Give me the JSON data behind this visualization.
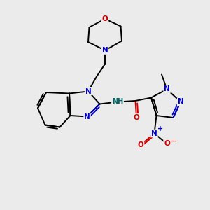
{
  "bg_color": "#ebebeb",
  "bond_color": "#000000",
  "N_color": "#0000cc",
  "O_color": "#cc0000",
  "NH_color": "#006666",
  "line_width": 1.4,
  "figsize": [
    3.0,
    3.0
  ],
  "dpi": 100,
  "xlim": [
    0,
    10
  ],
  "ylim": [
    0,
    10
  ]
}
